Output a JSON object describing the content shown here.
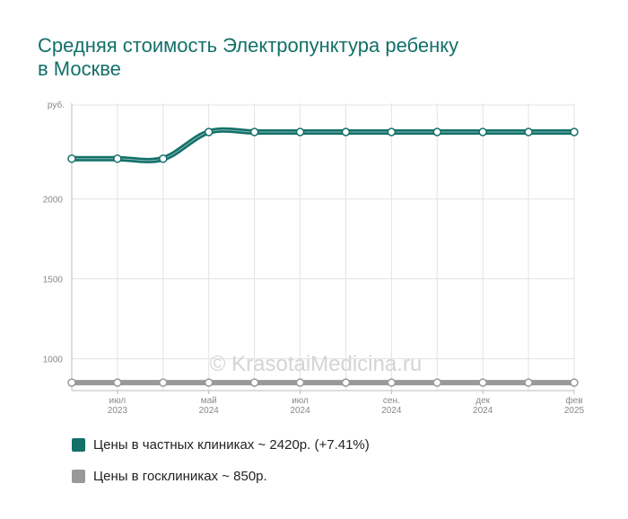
{
  "title_lines": [
    "Средняя стоимость Электропунктура ребенку",
    "в Москве"
  ],
  "watermark": "© KrasotaiMedicina.ru",
  "chart_data": {
    "type": "line",
    "y_unit": "руб.",
    "ylim": [
      800,
      2600
    ],
    "yticks": [
      1000,
      1500,
      2000
    ],
    "x_tick_labels": [
      [
        "июл",
        "2023"
      ],
      [
        "май",
        "2024"
      ],
      [
        "июл",
        "2024"
      ],
      [
        "сен.",
        "2024"
      ],
      [
        "дек",
        "2024"
      ],
      [
        "фев",
        "2025"
      ]
    ],
    "series": [
      {
        "name": "Цены в частных клиниках ~ 2420р. (+7.41%)",
        "color": "#127068",
        "values": [
          2253,
          2253,
          2253,
          2420,
          2420,
          2420,
          2420,
          2420,
          2420,
          2420,
          2420,
          2420
        ]
      },
      {
        "name": "Цены в госклиниках ~ 850р.",
        "color": "#999999",
        "values": [
          850,
          850,
          850,
          850,
          850,
          850,
          850,
          850,
          850,
          850,
          850,
          850
        ]
      }
    ],
    "grid": true,
    "legend_position": "bottom-left"
  }
}
